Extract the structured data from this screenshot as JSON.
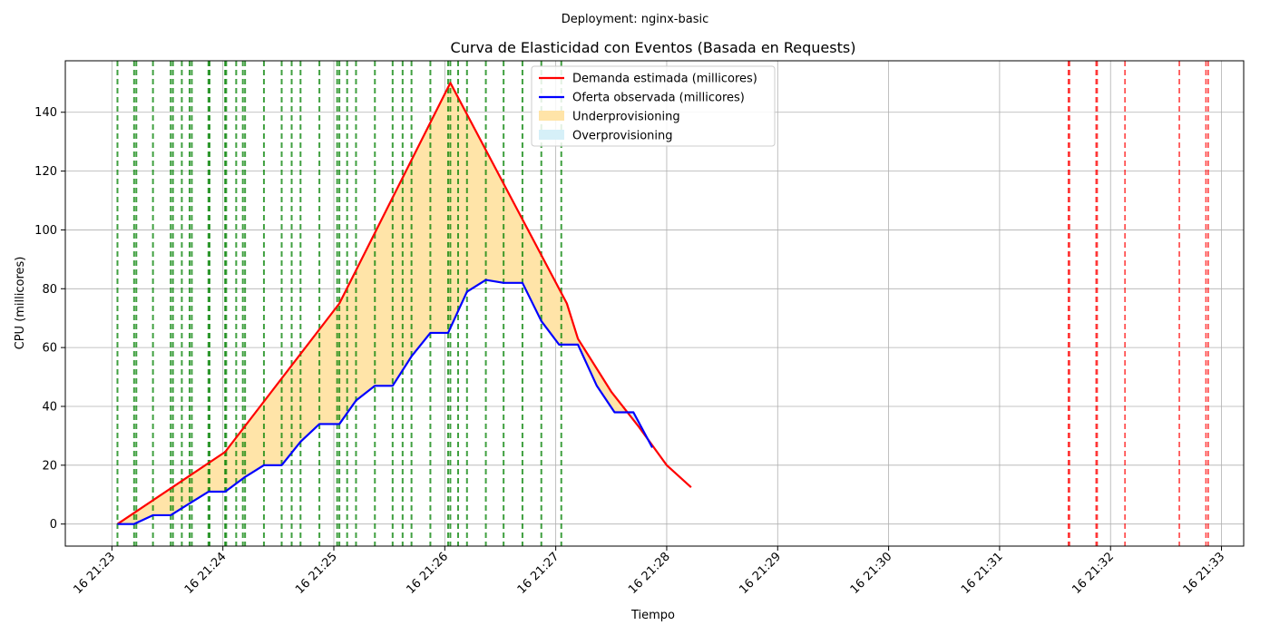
{
  "chart_data": {
    "type": "line",
    "suptitle": "Deployment: nginx-basic",
    "title": "Curva de Elasticidad con Eventos (Basada en Requests)",
    "xlabel": "Tiempo",
    "ylabel": "CPU (millicores)",
    "ylim": [
      -7.5,
      157.5
    ],
    "yticks": [
      0,
      20,
      40,
      60,
      80,
      100,
      120,
      140
    ],
    "xlim_minutes": [
      -0.42,
      10.2
    ],
    "xticks": [
      {
        "minute": 0,
        "label": "16 21:23"
      },
      {
        "minute": 1,
        "label": "16 21:24"
      },
      {
        "minute": 2,
        "label": "16 21:25"
      },
      {
        "minute": 3,
        "label": "16 21:26"
      },
      {
        "minute": 4,
        "label": "16 21:27"
      },
      {
        "minute": 5,
        "label": "16 21:28"
      },
      {
        "minute": 6,
        "label": "16 21:29"
      },
      {
        "minute": 7,
        "label": "16 21:30"
      },
      {
        "minute": 8,
        "label": "16 21:31"
      },
      {
        "minute": 9,
        "label": "16 21:32"
      },
      {
        "minute": 10,
        "label": "16 21:33"
      }
    ],
    "grid": true,
    "legend_position": "upper-center",
    "series": [
      {
        "name": "Demanda estimada (millicores)",
        "color": "#ff0000",
        "points": [
          [
            0.05,
            0
          ],
          [
            1.02,
            24.5
          ],
          [
            2.05,
            75
          ],
          [
            3.05,
            150
          ],
          [
            4.1,
            75
          ],
          [
            4.2,
            63
          ],
          [
            4.5,
            45
          ],
          [
            4.75,
            33
          ],
          [
            5.0,
            20
          ],
          [
            5.22,
            12.5
          ]
        ]
      },
      {
        "name": "Oferta observada (millicores)",
        "color": "#0000ff",
        "points": [
          [
            0.05,
            0
          ],
          [
            0.2,
            0
          ],
          [
            0.37,
            3
          ],
          [
            0.53,
            3
          ],
          [
            0.7,
            7
          ],
          [
            0.87,
            11
          ],
          [
            1.02,
            11
          ],
          [
            1.2,
            16
          ],
          [
            1.37,
            20
          ],
          [
            1.53,
            20
          ],
          [
            1.7,
            28
          ],
          [
            1.87,
            34
          ],
          [
            2.05,
            34
          ],
          [
            2.2,
            42
          ],
          [
            2.37,
            47
          ],
          [
            2.53,
            47
          ],
          [
            2.7,
            57
          ],
          [
            2.87,
            65
          ],
          [
            3.03,
            65
          ],
          [
            3.2,
            79
          ],
          [
            3.37,
            83
          ],
          [
            3.53,
            82
          ],
          [
            3.7,
            82
          ],
          [
            3.87,
            69
          ],
          [
            4.03,
            61
          ],
          [
            4.2,
            61
          ],
          [
            4.37,
            47
          ],
          [
            4.53,
            38
          ],
          [
            4.7,
            38
          ],
          [
            4.87,
            26
          ]
        ]
      }
    ],
    "fills": [
      {
        "name": "Underprovisioning",
        "color": "#ffe4a8"
      },
      {
        "name": "Overprovisioning",
        "color": "#d6f0f8"
      }
    ],
    "event_lines": {
      "scale_events": {
        "color": "#008000",
        "minutes": [
          0.05,
          0.2,
          0.22,
          0.37,
          0.53,
          0.55,
          0.63,
          0.7,
          0.72,
          0.87,
          0.88,
          1.02,
          1.03,
          1.12,
          1.18,
          1.2,
          1.37,
          1.53,
          1.62,
          1.7,
          1.87,
          2.03,
          2.05,
          2.12,
          2.2,
          2.37,
          2.53,
          2.62,
          2.7,
          2.87,
          3.03,
          3.05,
          3.12,
          3.2,
          3.37,
          3.53,
          3.7,
          3.87,
          4.05
        ]
      },
      "warning_events": {
        "color": "#ff0000",
        "minutes": [
          8.62,
          8.63,
          8.87,
          8.88,
          9.13,
          9.62,
          9.86,
          9.88
        ]
      }
    }
  }
}
